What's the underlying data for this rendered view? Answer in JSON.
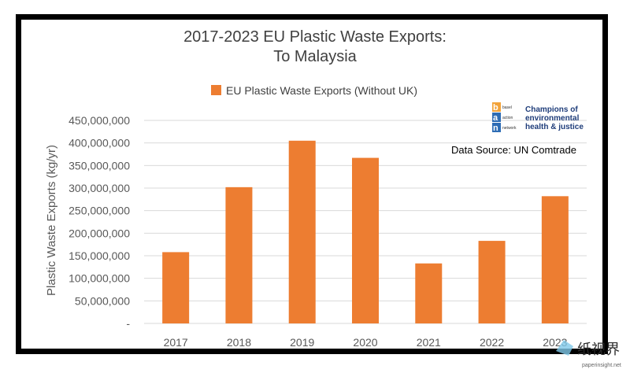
{
  "chart_data": {
    "type": "bar",
    "title": "2017-2023 EU Plastic Waste Exports:",
    "subtitle": "To Malaysia",
    "legend": "EU Plastic Waste Exports (Without UK)",
    "ylabel": "Plastic Waste Exports (kg/yr)",
    "xlabel": "",
    "categories": [
      "2017",
      "2018",
      "2019",
      "2020",
      "2021",
      "2022",
      "2023"
    ],
    "values": [
      158000000,
      302000000,
      405000000,
      367000000,
      133000000,
      183000000,
      282000000
    ],
    "ylim": [
      0,
      450000000
    ],
    "yticks": [
      "-",
      "50,000,000",
      "100,000,000",
      "150,000,000",
      "200,000,000",
      "250,000,000",
      "300,000,000",
      "350,000,000",
      "400,000,000",
      "450,000,000"
    ],
    "grid": true,
    "legend_position": "top",
    "colors": {
      "bar": "#ed7d31",
      "grid": "#d9d9d9",
      "frame": "#000000"
    }
  },
  "annotation": "Data Source: UN Comtrade",
  "logo": {
    "letters": [
      "b",
      "a",
      "n"
    ],
    "small_words": [
      "basel",
      "action",
      "network"
    ],
    "tagline_lines": [
      "Champions of",
      "environmental",
      "health & justice"
    ]
  },
  "watermark": {
    "text": "纸视界",
    "url": "paperinsight.net"
  }
}
